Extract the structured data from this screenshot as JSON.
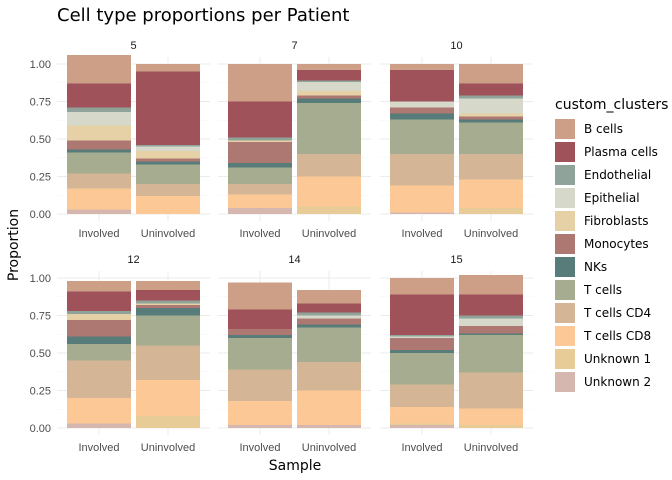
{
  "chart_data": {
    "type": "bar",
    "stacked": true,
    "title": "Cell type proportions per Patient",
    "xlabel": "Sample",
    "ylabel": "Proportion",
    "ylim": [
      0,
      1
    ],
    "yticks": [
      "0.00",
      "0.25",
      "0.50",
      "0.75",
      "1.00"
    ],
    "yticks_values": [
      0,
      0.25,
      0.5,
      0.75,
      1
    ],
    "grid": true,
    "categories": [
      "Involved",
      "Uninvolved"
    ],
    "legend": {
      "title": "custom_clusters",
      "position": "right",
      "entries": [
        "B cells",
        "Plasma cells",
        "Endothelial",
        "Epithelial",
        "Fibroblasts",
        "Monocytes",
        "NKs",
        "T cells",
        "T cells CD4",
        "T cells CD8",
        "Unknown 1",
        "Unknown 2"
      ],
      "colors": [
        "#CD9F87",
        "#A0525A",
        "#8FA39A",
        "#D6D8CA",
        "#E5D1A5",
        "#AE7872",
        "#587C79",
        "#A5AC8F",
        "#D4B697",
        "#FCC996",
        "#E7CC97",
        "#D6B7AF"
      ]
    },
    "panels": [
      {
        "patient": "5",
        "bars": [
          {
            "sample": "Involved",
            "values": [
              0.19,
              0.16,
              0.03,
              0.09,
              0.1,
              0.06,
              0.02,
              0.14,
              0.1,
              0.14,
              0.0,
              0.03
            ]
          },
          {
            "sample": "Uninvolved",
            "values": [
              0.05,
              0.49,
              0.01,
              0.03,
              0.05,
              0.02,
              0.02,
              0.13,
              0.08,
              0.12,
              0.0,
              0.0
            ]
          }
        ]
      },
      {
        "patient": "7",
        "bars": [
          {
            "sample": "Involved",
            "values": [
              0.25,
              0.24,
              0.02,
              0.0,
              0.01,
              0.14,
              0.03,
              0.11,
              0.07,
              0.09,
              0.0,
              0.04
            ]
          },
          {
            "sample": "Uninvolved",
            "values": [
              0.04,
              0.07,
              0.01,
              0.06,
              0.03,
              0.02,
              0.03,
              0.34,
              0.15,
              0.2,
              0.05,
              0.0
            ]
          }
        ]
      },
      {
        "patient": "10",
        "bars": [
          {
            "sample": "Involved",
            "values": [
              0.04,
              0.21,
              0.0,
              0.04,
              0.0,
              0.04,
              0.04,
              0.23,
              0.21,
              0.18,
              0.0,
              0.01
            ]
          },
          {
            "sample": "Uninvolved",
            "values": [
              0.13,
              0.08,
              0.02,
              0.1,
              0.02,
              0.02,
              0.02,
              0.21,
              0.17,
              0.19,
              0.04,
              0.0
            ]
          }
        ]
      },
      {
        "patient": "12",
        "bars": [
          {
            "sample": "Involved",
            "values": [
              0.07,
              0.13,
              0.02,
              0.0,
              0.04,
              0.11,
              0.05,
              0.11,
              0.25,
              0.17,
              0.0,
              0.03
            ]
          },
          {
            "sample": "Uninvolved",
            "values": [
              0.06,
              0.07,
              0.02,
              0.0,
              0.01,
              0.02,
              0.05,
              0.2,
              0.23,
              0.24,
              0.08,
              0.0
            ]
          }
        ]
      },
      {
        "patient": "14",
        "bars": [
          {
            "sample": "Involved",
            "values": [
              0.18,
              0.13,
              0.0,
              0.0,
              0.0,
              0.04,
              0.02,
              0.21,
              0.21,
              0.16,
              0.0,
              0.02
            ]
          },
          {
            "sample": "Uninvolved",
            "values": [
              0.09,
              0.06,
              0.02,
              0.02,
              0.0,
              0.04,
              0.02,
              0.23,
              0.19,
              0.23,
              0.0,
              0.02
            ]
          }
        ]
      },
      {
        "patient": "15",
        "bars": [
          {
            "sample": "Involved",
            "values": [
              0.11,
              0.27,
              0.01,
              0.01,
              0.0,
              0.08,
              0.02,
              0.21,
              0.15,
              0.11,
              0.01,
              0.02
            ]
          },
          {
            "sample": "Uninvolved",
            "values": [
              0.13,
              0.14,
              0.02,
              0.05,
              0.0,
              0.05,
              0.01,
              0.25,
              0.24,
              0.11,
              0.02,
              0.0
            ]
          }
        ]
      }
    ]
  }
}
